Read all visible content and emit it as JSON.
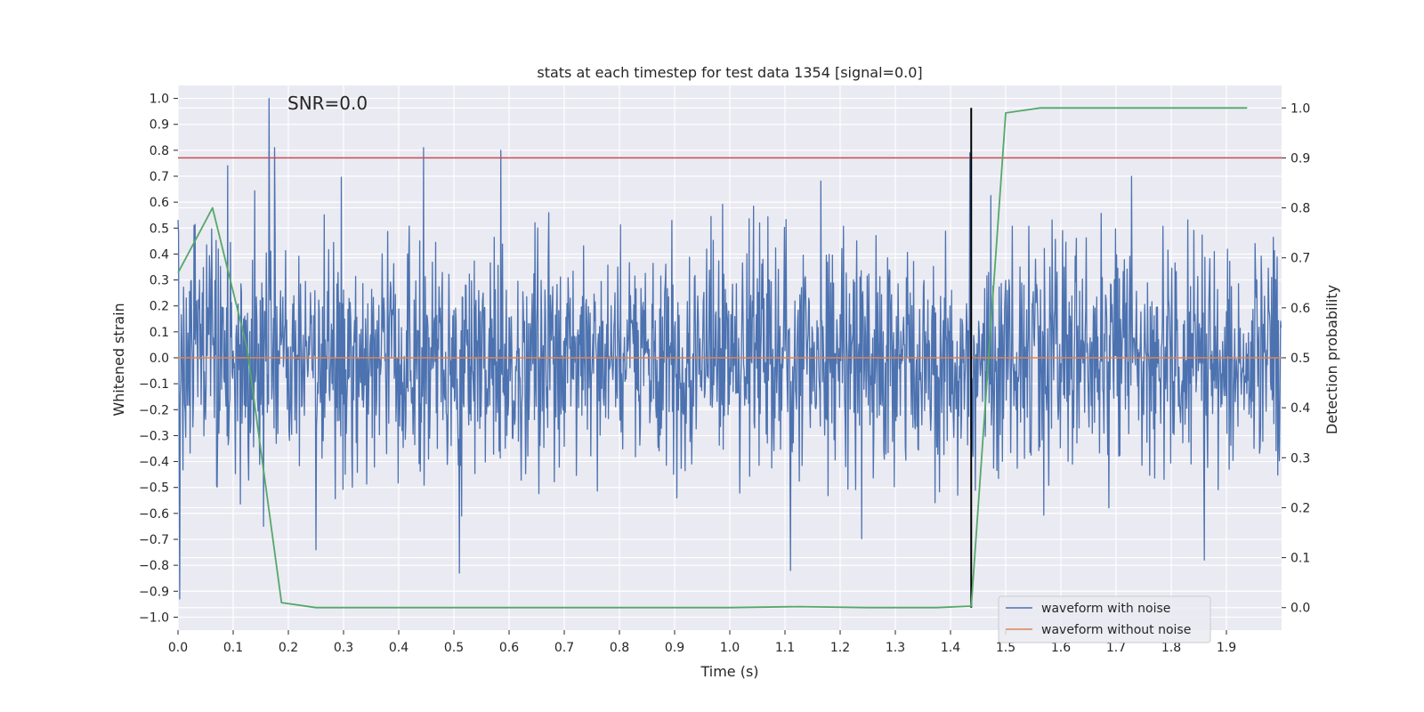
{
  "chart_data": {
    "type": "line",
    "title": "stats at each timestep for test data 1354 [signal=0.0]",
    "xlabel": "Time (s)",
    "ylabel": "Whitened strain",
    "y2label": "Detection probability",
    "annotation": "SNR=0.0",
    "xlim": [
      0.0,
      2.0
    ],
    "ylim": [
      -1.05,
      1.05
    ],
    "y2lim": [
      -0.045,
      1.045
    ],
    "x_ticks": [
      "0.0",
      "0.1",
      "0.2",
      "0.3",
      "0.4",
      "0.5",
      "0.6",
      "0.7",
      "0.8",
      "0.9",
      "1.0",
      "1.1",
      "1.2",
      "1.3",
      "1.4",
      "1.5",
      "1.6",
      "1.7",
      "1.8",
      "1.9"
    ],
    "y_ticks": [
      "1.0",
      "0.9",
      "0.8",
      "0.7",
      "0.6",
      "0.5",
      "0.4",
      "0.3",
      "0.2",
      "0.1",
      "0.0",
      "−0.1",
      "−0.2",
      "−0.3",
      "−0.4",
      "−0.5",
      "−0.6",
      "−0.7",
      "−0.8",
      "−0.9",
      "−1.0"
    ],
    "y2_ticks": [
      "1.0",
      "0.9",
      "0.8",
      "0.7",
      "0.6",
      "0.5",
      "0.4",
      "0.3",
      "0.2",
      "0.1",
      "0.0"
    ],
    "grid": true,
    "legend_position": "lower-right",
    "series": [
      {
        "name": "waveform with noise",
        "color": "#4c72b0",
        "axis": "left",
        "peaks": [
          {
            "x": 0.003,
            "y": -0.93
          },
          {
            "x": 0.09,
            "y": 0.74
          },
          {
            "x": 0.165,
            "y": 1.0
          },
          {
            "x": 0.175,
            "y": 0.81
          },
          {
            "x": 0.155,
            "y": -0.65
          },
          {
            "x": 0.25,
            "y": -0.74
          },
          {
            "x": 0.445,
            "y": 0.81
          },
          {
            "x": 0.51,
            "y": -0.83
          },
          {
            "x": 0.585,
            "y": 0.8
          },
          {
            "x": 1.11,
            "y": -0.82
          },
          {
            "x": 1.435,
            "y": 0.79
          },
          {
            "x": 1.86,
            "y": -0.78
          }
        ],
        "std": 0.22
      },
      {
        "name": "waveform without noise",
        "color": "#dd8452",
        "axis": "left",
        "x": [
          0.0,
          2.0
        ],
        "y": [
          0.0,
          0.0
        ]
      },
      {
        "name": "",
        "color": "#55a868",
        "axis": "right",
        "x": [
          0.0,
          0.0625,
          0.125,
          0.1875,
          0.25,
          0.3125,
          1.0,
          1.125,
          1.25,
          1.375,
          1.4375,
          1.5,
          1.5625,
          1.625,
          1.9375
        ],
        "y": [
          0.67,
          0.8,
          0.52,
          0.01,
          0.0,
          0.0,
          0.0,
          0.002,
          0.0,
          0.0,
          0.003,
          0.99,
          1.0,
          1.0,
          1.0
        ]
      }
    ],
    "reference_lines": [
      {
        "type": "horizontal",
        "axis": "right",
        "y": 0.9,
        "color": "#c44e52"
      },
      {
        "type": "vertical",
        "x": 1.4375,
        "y_from": 0.0,
        "y_to": 1.0,
        "axis": "right",
        "color": "#000000"
      }
    ]
  }
}
